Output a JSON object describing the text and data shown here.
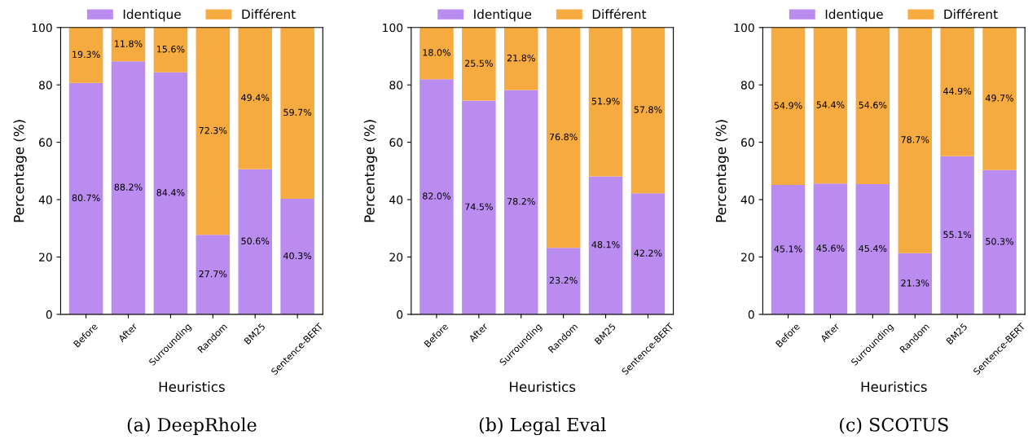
{
  "chart_data": [
    {
      "type": "bar",
      "stacked": true,
      "categories": [
        "Before",
        "After",
        "Surrounding",
        "Random",
        "BM25",
        "Sentence-BERT"
      ],
      "xlabel": "Heuristics",
      "ylabel": "Percentage (%)",
      "ylim": [
        0,
        100
      ],
      "yticks": [
        0,
        20,
        40,
        60,
        80,
        100
      ],
      "legend": "top",
      "grid": false,
      "annotations": [
        "(a) DeepRhole"
      ],
      "series": [
        {
          "name": "Identique",
          "color": "#bb8cf0",
          "values": [
            80.7,
            88.2,
            84.4,
            27.7,
            50.6,
            40.3
          ],
          "value_labels": [
            "80.7%",
            "88.2%",
            "84.4%",
            "27.7%",
            "50.6%",
            "40.3%"
          ]
        },
        {
          "name": "Différent",
          "color": "#f5ab40",
          "values": [
            19.3,
            11.8,
            15.6,
            72.3,
            49.4,
            59.7
          ],
          "value_labels": [
            "19.3%",
            "11.8%",
            "15.6%",
            "72.3%",
            "49.4%",
            "59.7%"
          ]
        }
      ]
    },
    {
      "type": "bar",
      "stacked": true,
      "categories": [
        "Before",
        "After",
        "Surrounding",
        "Random",
        "BM25",
        "Sentence-BERT"
      ],
      "xlabel": "Heuristics",
      "ylabel": "Percentage (%)",
      "ylim": [
        0,
        100
      ],
      "yticks": [
        0,
        20,
        40,
        60,
        80,
        100
      ],
      "legend": "top",
      "grid": false,
      "annotations": [
        "(b) Legal Eval"
      ],
      "series": [
        {
          "name": "Identique",
          "color": "#bb8cf0",
          "values": [
            82.0,
            74.5,
            78.2,
            23.2,
            48.1,
            42.2
          ],
          "value_labels": [
            "82.0%",
            "74.5%",
            "78.2%",
            "23.2%",
            "48.1%",
            "42.2%"
          ]
        },
        {
          "name": "Différent",
          "color": "#f5ab40",
          "values": [
            18.0,
            25.5,
            21.8,
            76.8,
            51.9,
            57.8
          ],
          "value_labels": [
            "18.0%",
            "25.5%",
            "21.8%",
            "76.8%",
            "51.9%",
            "57.8%"
          ]
        }
      ]
    },
    {
      "type": "bar",
      "stacked": true,
      "categories": [
        "Before",
        "After",
        "Surrounding",
        "Random",
        "BM25",
        "Sentence-BERT"
      ],
      "xlabel": "Heuristics",
      "ylabel": "Percentage (%)",
      "ylim": [
        0,
        100
      ],
      "yticks": [
        0,
        20,
        40,
        60,
        80,
        100
      ],
      "legend": "top",
      "grid": false,
      "annotations": [
        "(c) SCOTUS"
      ],
      "series": [
        {
          "name": "Identique",
          "color": "#bb8cf0",
          "values": [
            45.1,
            45.6,
            45.4,
            21.3,
            55.1,
            50.3
          ],
          "value_labels": [
            "45.1%",
            "45.6%",
            "45.4%",
            "21.3%",
            "55.1%",
            "50.3%"
          ]
        },
        {
          "name": "Différent",
          "color": "#f5ab40",
          "values": [
            54.9,
            54.4,
            54.6,
            78.7,
            44.9,
            49.7
          ],
          "value_labels": [
            "54.9%",
            "54.4%",
            "54.6%",
            "78.7%",
            "44.9%",
            "49.7%"
          ]
        }
      ]
    }
  ]
}
